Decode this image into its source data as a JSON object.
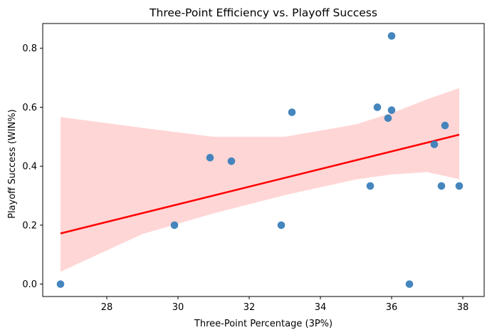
{
  "chart_data": {
    "type": "scatter",
    "title": "Three-Point Efficiency vs. Playoff Success",
    "xlabel": "Three-Point Percentage (3P%)",
    "ylabel": "Playoff Success (WIN%)",
    "xlim": [
      26.2,
      38.6
    ],
    "ylim": [
      -0.042,
      0.884
    ],
    "x_ticks": [
      28,
      30,
      32,
      34,
      36,
      38
    ],
    "y_ticks": [
      0.0,
      0.2,
      0.4,
      0.6,
      0.8
    ],
    "x_tick_labels": [
      "28",
      "30",
      "32",
      "34",
      "36",
      "38"
    ],
    "y_tick_labels": [
      "0.0",
      "0.2",
      "0.4",
      "0.6",
      "0.8"
    ],
    "grid": false,
    "series": [
      {
        "marker_color": "#3b80ba",
        "x": [
          26.7,
          29.9,
          30.9,
          31.5,
          32.9,
          33.2,
          35.4,
          35.6,
          35.9,
          36.0,
          36.0,
          36.5,
          37.2,
          37.4,
          37.5,
          37.9
        ],
        "y": [
          0.0,
          0.2,
          0.429,
          0.417,
          0.2,
          0.583,
          0.333,
          0.6,
          0.563,
          0.59,
          0.842,
          0.0,
          0.474,
          0.333,
          0.538,
          0.333
        ]
      }
    ],
    "regression": {
      "color": "#ff0000",
      "band_color": "#ffd6d6",
      "line": {
        "x": [
          26.7,
          37.9
        ],
        "y": [
          0.172,
          0.507
        ]
      },
      "ci_upper": {
        "x": [
          26.7,
          29,
          31,
          33,
          35,
          36,
          37,
          37.9
        ],
        "y": [
          0.567,
          0.53,
          0.5,
          0.5,
          0.542,
          0.58,
          0.627,
          0.665
        ]
      },
      "ci_lower": {
        "x": [
          26.7,
          29,
          31,
          33,
          35,
          36,
          37,
          37.9
        ],
        "y": [
          0.042,
          0.17,
          0.24,
          0.302,
          0.355,
          0.372,
          0.38,
          0.356
        ]
      }
    }
  }
}
